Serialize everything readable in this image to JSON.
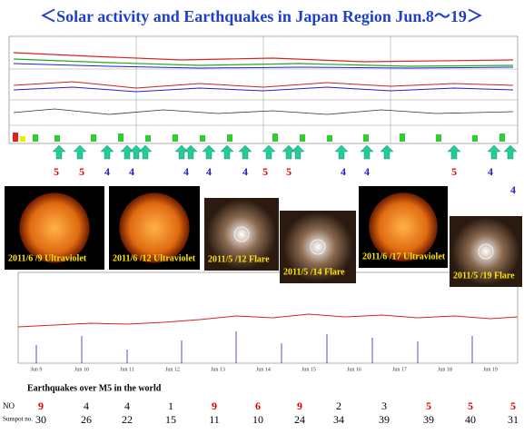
{
  "title": "＜Solar activity and Earthquakes  in Japan Region Jun.8～19＞",
  "images": [
    {
      "caption": "2011/6 /9  Ultraviolet"
    },
    {
      "caption": "2011/6 /12  Ultraviolet"
    },
    {
      "caption": "2011/5 /12  Flare"
    },
    {
      "caption": "2011/5 /14  Flare"
    },
    {
      "caption": "2011/6 /17  Ultraviolet"
    },
    {
      "caption": "2011/5 /19  Flare"
    }
  ],
  "quake_marks": [
    {
      "text": "5",
      "color": "#d00"
    },
    {
      "text": "5",
      "color": "#d00"
    },
    {
      "text": "4",
      "color": "#22c"
    },
    {
      "text": "4",
      "color": "#22c"
    },
    {
      "text": "4",
      "color": "#22c"
    },
    {
      "text": "4",
      "color": "#22c"
    },
    {
      "text": "4",
      "color": "#22c"
    },
    {
      "text": "5",
      "color": "#d00"
    },
    {
      "text": "5",
      "color": "#d00"
    },
    {
      "text": "4",
      "color": "#22c"
    },
    {
      "text": "4",
      "color": "#22c"
    },
    {
      "text": "5",
      "color": "#d00"
    },
    {
      "text": "4",
      "color": "#22c"
    },
    {
      "text": "4",
      "color": "#22c"
    }
  ],
  "axis_dates": [
    "Jun 9",
    "Jun 10",
    "Jun 11",
    "Jun 12",
    "Jun 13",
    "Jun 14",
    "Jun 15",
    "Jun 16",
    "Jun 17",
    "Jun 18",
    "Jun 19"
  ],
  "table": {
    "title": "Earthquakes  over M5 in the world",
    "row_labels": [
      "NO",
      "Sunspot no."
    ],
    "rows": [
      [
        "9",
        "4",
        "4",
        "1",
        "9",
        "6",
        "9",
        "2",
        "3",
        "5",
        "5",
        "5"
      ],
      [
        "30",
        "26",
        "22",
        "15",
        "11",
        "10",
        "24",
        "34",
        "39",
        "39",
        "40",
        "31"
      ]
    ]
  }
}
